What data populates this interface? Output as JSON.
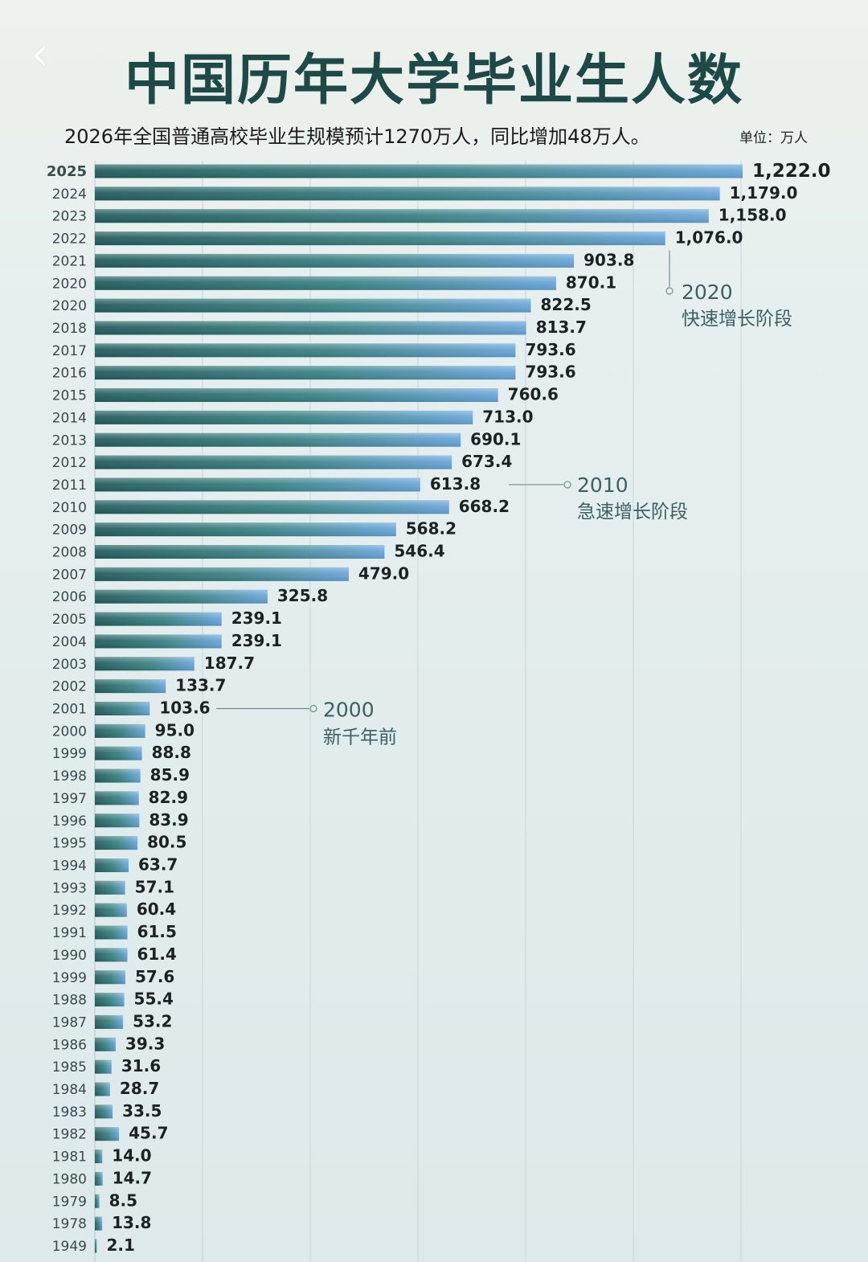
{
  "header": {
    "back_icon": "chevron-left-icon"
  },
  "chart_data": {
    "type": "bar",
    "orientation": "horizontal",
    "title": "中国历年大学毕业生人数",
    "subtitle": "2026年全国普通高校毕业生规模预计1270万人，同比增加48万人。",
    "unit_label": "单位：万人",
    "xlim": [
      0,
      1222
    ],
    "grid": true,
    "categories": [
      "2025",
      "2024",
      "2023",
      "2022",
      "2021",
      "2020",
      "2020",
      "2018",
      "2017",
      "2016",
      "2015",
      "2014",
      "2013",
      "2012",
      "2011",
      "2010",
      "2009",
      "2008",
      "2007",
      "2006",
      "2005",
      "2004",
      "2003",
      "2002",
      "2001",
      "2000",
      "1999",
      "1998",
      "1997",
      "1996",
      "1995",
      "1994",
      "1993",
      "1992",
      "1991",
      "1990",
      "1999",
      "1988",
      "1987",
      "1986",
      "1985",
      "1984",
      "1983",
      "1982",
      "1981",
      "1980",
      "1979",
      "1978",
      "1949"
    ],
    "values": [
      1222.0,
      1179.0,
      1158.0,
      1076.0,
      903.8,
      870.1,
      822.5,
      813.7,
      793.6,
      793.6,
      760.6,
      713.0,
      690.1,
      673.4,
      613.8,
      668.2,
      568.2,
      546.4,
      479.0,
      325.8,
      239.1,
      239.1,
      187.7,
      133.7,
      103.6,
      95.0,
      88.8,
      85.9,
      82.9,
      83.9,
      80.5,
      63.7,
      57.1,
      60.4,
      61.5,
      61.4,
      57.6,
      55.4,
      53.2,
      39.3,
      31.6,
      28.7,
      33.5,
      45.7,
      14.0,
      14.7,
      8.5,
      13.8,
      2.1
    ],
    "value_labels": [
      "1,222.0",
      "1,179.0",
      "1,158.0",
      "1,076.0",
      "903.8",
      "870.1",
      "822.5",
      "813.7",
      "793.6",
      "793.6",
      "760.6",
      "713.0",
      "690.1",
      "673.4",
      "613.8",
      "668.2",
      "568.2",
      "546.4",
      "479.0",
      "325.8",
      "239.1",
      "239.1",
      "187.7",
      "133.7",
      "103.6",
      "95.0",
      "88.8",
      "85.9",
      "82.9",
      "83.9",
      "80.5",
      "63.7",
      "57.1",
      "60.4",
      "61.5",
      "61.4",
      "57.6",
      "55.4",
      "53.2",
      "39.3",
      "31.6",
      "28.7",
      "33.5",
      "45.7",
      "14.0",
      "14.7",
      "8.5",
      "13.8",
      "2.1"
    ],
    "annotations": [
      {
        "year": "2020",
        "text": "快速增长阶段",
        "row": 3
      },
      {
        "year": "2010",
        "text": "急速增长阶段",
        "row": 14
      },
      {
        "year": "2000",
        "text": "新千年前",
        "row": 24
      }
    ],
    "colors": {
      "bar_start": "#245d5e",
      "bar_mid": "#3c8486",
      "bar_end": "#6aa6da",
      "grid": "#c9d4d6"
    }
  }
}
